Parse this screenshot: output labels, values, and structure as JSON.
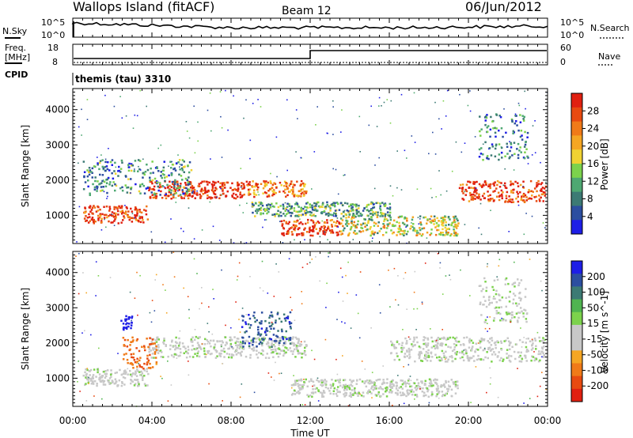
{
  "header": {
    "station": "Wallops Island (fitACF)",
    "beam": "Beam 12",
    "date": "06/Jun/2012"
  },
  "top_panels": {
    "nsky_label": "N.Sky",
    "nsky_scale_top": "10^5",
    "nsky_scale_bottom": "10^0",
    "nsearch_label": "N.Search",
    "nsearch_scale_top": "10^5",
    "nsearch_scale_bottom": "10^0",
    "freq_label_1": "Freq.",
    "freq_label_2": "[MHz]",
    "freq_ticks": [
      "18",
      "8"
    ],
    "nave_label": "Nave",
    "nave_ticks": [
      "60",
      "0"
    ],
    "cpid_label": "CPID",
    "cpid_value": "themis (tau) 3310"
  },
  "x_axis": {
    "label": "Time UT",
    "ticks": [
      "00:00",
      "04:00",
      "08:00",
      "12:00",
      "16:00",
      "20:00",
      "00:00"
    ]
  },
  "chart_data": [
    {
      "type": "heatmap",
      "name": "power",
      "ylabel": "Slant Range [km]",
      "y_ticks": [
        "1000",
        "2000",
        "3000",
        "4000"
      ],
      "ylim": [
        200,
        4600
      ],
      "xlim_hours": [
        0,
        24
      ],
      "colorbar_label": "Power [dB]",
      "colorbar_ticks": [
        "4",
        "8",
        "12",
        "16",
        "20",
        "24",
        "28"
      ],
      "colorbar_colors": [
        "#1e1ee6",
        "#2c4ea0",
        "#3c7a74",
        "#4ea872",
        "#7cd24c",
        "#f0d232",
        "#f5a623",
        "#f07a18",
        "#e84a10",
        "#e02010"
      ],
      "bands": [
        {
          "t": [
            0.5,
            3.8
          ],
          "r": [
            800,
            1300
          ],
          "level": 0.9
        },
        {
          "t": [
            3.8,
            8.8
          ],
          "r": [
            1500,
            2000
          ],
          "level": 0.95
        },
        {
          "t": [
            8.8,
            11.8
          ],
          "r": [
            1550,
            2000
          ],
          "level": 0.75
        },
        {
          "t": [
            10.5,
            13.5
          ],
          "r": [
            450,
            900
          ],
          "level": 0.9
        },
        {
          "t": [
            13.5,
            19.5
          ],
          "r": [
            450,
            1000
          ],
          "level": 0.5
        },
        {
          "t": [
            19.5,
            24
          ],
          "r": [
            1400,
            2000
          ],
          "level": 0.9
        },
        {
          "t": [
            0.5,
            6
          ],
          "r": [
            1600,
            2600
          ],
          "level": 0.3
        },
        {
          "t": [
            9,
            16
          ],
          "r": [
            1000,
            1400
          ],
          "level": 0.35
        },
        {
          "t": [
            20.5,
            23
          ],
          "r": [
            2600,
            3900
          ],
          "level": 0.25
        }
      ]
    },
    {
      "type": "heatmap",
      "name": "velocity",
      "ylabel": "Slant Range [km]",
      "y_ticks": [
        "1000",
        "2000",
        "3000",
        "4000"
      ],
      "ylim": [
        200,
        4600
      ],
      "xlim_hours": [
        0,
        24
      ],
      "colorbar_label": "Velocity [m s^-1]",
      "colorbar_ticks": [
        "200",
        "100",
        "50",
        "15",
        "-15",
        "-50",
        "-100",
        "-200"
      ],
      "colorbar_colors": [
        "#1e1ee6",
        "#2c4ea0",
        "#3c7a74",
        "#50b450",
        "#7cd24c",
        "#c8c8c8",
        "#c8c8c8",
        "#f5a623",
        "#f07a18",
        "#e84a10",
        "#e02010"
      ],
      "bands": [
        {
          "t": [
            0.5,
            3.8
          ],
          "r": [
            800,
            1300
          ],
          "vel": 0
        },
        {
          "t": [
            3.8,
            11.8
          ],
          "r": [
            1600,
            2200
          ],
          "vel": 0
        },
        {
          "t": [
            8.5,
            11
          ],
          "r": [
            1900,
            2900
          ],
          "vel": 0.7
        },
        {
          "t": [
            2.5,
            4.2
          ],
          "r": [
            1300,
            2200
          ],
          "vel": -0.6
        },
        {
          "t": [
            2.4,
            3
          ],
          "r": [
            2400,
            2800
          ],
          "vel": 1
        },
        {
          "t": [
            11,
            19.5
          ],
          "r": [
            500,
            1000
          ],
          "vel": 0
        },
        {
          "t": [
            16,
            24
          ],
          "r": [
            1500,
            2200
          ],
          "vel": 0
        },
        {
          "t": [
            20.5,
            23
          ],
          "r": [
            2600,
            3900
          ],
          "vel": 0
        }
      ]
    }
  ]
}
